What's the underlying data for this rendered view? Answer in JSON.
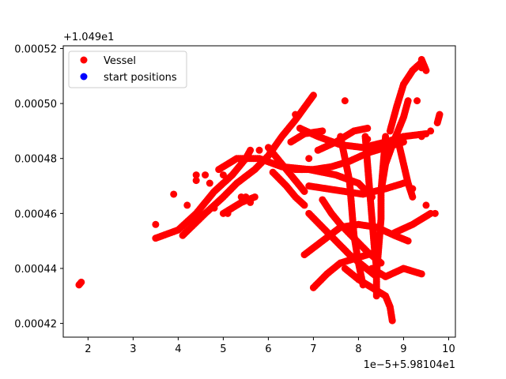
{
  "chart_data": {
    "type": "scatter",
    "title": "",
    "xlabel": "",
    "ylabel": "",
    "x_offset_label": "1e−5+5.98104e1",
    "y_offset_label": "+1.049e1",
    "xlim": [
      1.45,
      10.15
    ],
    "ylim": [
      0.000415,
      0.000521
    ],
    "x_ticks": [
      2,
      3,
      4,
      5,
      6,
      7,
      8,
      9,
      10
    ],
    "x_tick_labels": [
      "2",
      "3",
      "4",
      "5",
      "6",
      "7",
      "8",
      "9",
      "10"
    ],
    "y_ticks": [
      0.00042,
      0.00044,
      0.00046,
      0.00048,
      0.0005,
      0.00052
    ],
    "y_tick_labels": [
      "0.00042",
      "0.00044",
      "0.00046",
      "0.00048",
      "0.00050",
      "0.00052"
    ],
    "grid": false,
    "legend_position": "upper-left",
    "series": [
      {
        "name": "Vessel",
        "color": "#ff0000",
        "paths": [
          [
            [
              3.5,
              0.000451
            ],
            [
              4.0,
              0.000454
            ],
            [
              4.4,
              0.00046
            ],
            [
              4.8,
              0.000468
            ],
            [
              5.2,
              0.000474
            ],
            [
              5.5,
              0.00048
            ],
            [
              5.6,
              0.000483
            ]
          ],
          [
            [
              4.1,
              0.000452
            ],
            [
              4.6,
              0.00046
            ],
            [
              5.0,
              0.000466
            ],
            [
              5.3,
              0.000471
            ],
            [
              5.7,
              0.000476
            ],
            [
              6.0,
              0.000481
            ],
            [
              6.3,
              0.000488
            ],
            [
              6.6,
              0.000494
            ],
            [
              7.0,
              0.000503
            ]
          ],
          [
            [
              4.9,
              0.000476
            ],
            [
              5.3,
              0.00048
            ],
            [
              5.8,
              0.00048
            ],
            [
              6.3,
              0.000477
            ],
            [
              6.9,
              0.000476
            ],
            [
              7.5,
              0.000474
            ],
            [
              8.0,
              0.000471
            ],
            [
              8.3,
              0.000466
            ]
          ],
          [
            [
              5.0,
              0.00046
            ],
            [
              5.4,
              0.000464
            ],
            [
              5.7,
              0.000466
            ]
          ],
          [
            [
              6.7,
              0.000491
            ],
            [
              7.1,
              0.000488
            ],
            [
              7.6,
              0.000485
            ],
            [
              8.1,
              0.000484
            ],
            [
              8.6,
              0.000486
            ],
            [
              9.0,
              0.000488
            ],
            [
              9.5,
              0.000489
            ]
          ],
          [
            [
              6.6,
              0.000476
            ],
            [
              7.0,
              0.000476
            ],
            [
              7.4,
              0.000477
            ],
            [
              7.8,
              0.000479
            ],
            [
              8.2,
              0.000482
            ],
            [
              8.6,
              0.000484
            ],
            [
              9.0,
              0.000486
            ]
          ],
          [
            [
              7.1,
              0.000483
            ],
            [
              7.5,
              0.000486
            ],
            [
              7.9,
              0.00049
            ],
            [
              8.2,
              0.000491
            ]
          ],
          [
            [
              6.9,
              0.00047
            ],
            [
              7.3,
              0.000469
            ],
            [
              7.7,
              0.000468
            ],
            [
              8.1,
              0.000467
            ],
            [
              8.6,
              0.000469
            ],
            [
              9.0,
              0.000471
            ]
          ],
          [
            [
              7.6,
              0.000488
            ],
            [
              7.7,
              0.00048
            ],
            [
              7.8,
              0.000472
            ],
            [
              7.85,
              0.000462
            ],
            [
              7.9,
              0.000452
            ],
            [
              8.0,
              0.000442
            ],
            [
              8.1,
              0.000434
            ]
          ],
          [
            [
              8.15,
              0.000488
            ],
            [
              8.2,
              0.000478
            ],
            [
              8.25,
              0.000468
            ],
            [
              8.3,
              0.000458
            ],
            [
              8.35,
              0.000448
            ],
            [
              8.4,
              0.00044
            ]
          ],
          [
            [
              8.6,
              0.000488
            ],
            [
              8.55,
              0.000478
            ],
            [
              8.5,
              0.000468
            ],
            [
              8.5,
              0.000458
            ],
            [
              8.45,
              0.000448
            ],
            [
              8.4,
              0.000438
            ],
            [
              8.4,
              0.00043
            ]
          ],
          [
            [
              8.7,
              0.00049
            ],
            [
              8.85,
              0.000499
            ],
            [
              9.0,
              0.000507
            ],
            [
              9.2,
              0.000512
            ],
            [
              9.4,
              0.000515
            ]
          ],
          [
            [
              8.5,
              0.000468
            ],
            [
              8.6,
              0.000478
            ],
            [
              8.8,
              0.000487
            ],
            [
              9.0,
              0.000495
            ],
            [
              9.1,
              0.000501
            ]
          ],
          [
            [
              8.9,
              0.000485
            ],
            [
              9.0,
              0.000478
            ],
            [
              9.1,
              0.000471
            ],
            [
              9.2,
              0.000466
            ]
          ],
          [
            [
              6.9,
              0.00046
            ],
            [
              7.2,
              0.000455
            ],
            [
              7.5,
              0.00045
            ],
            [
              7.8,
              0.000445
            ],
            [
              8.1,
              0.000441
            ],
            [
              8.4,
              0.000437
            ]
          ],
          [
            [
              7.2,
              0.000465
            ],
            [
              7.4,
              0.00046
            ],
            [
              7.6,
              0.000456
            ],
            [
              7.9,
              0.000451
            ],
            [
              8.2,
              0.000446
            ],
            [
              8.5,
              0.000442
            ]
          ],
          [
            [
              6.8,
              0.000445
            ],
            [
              7.2,
              0.00045
            ],
            [
              7.6,
              0.000455
            ],
            [
              8.0,
              0.000456
            ],
            [
              8.4,
              0.000455
            ],
            [
              8.8,
              0.000452
            ],
            [
              9.1,
              0.00045
            ]
          ],
          [
            [
              7.0,
              0.000433
            ],
            [
              7.3,
              0.000438
            ],
            [
              7.6,
              0.000442
            ],
            [
              8.0,
              0.000444
            ],
            [
              8.4,
              0.000446
            ]
          ],
          [
            [
              7.7,
              0.00044
            ],
            [
              8.0,
              0.000436
            ],
            [
              8.3,
              0.000433
            ],
            [
              8.6,
              0.00043
            ],
            [
              8.7,
              0.000426
            ],
            [
              8.75,
              0.000421
            ]
          ],
          [
            [
              8.3,
              0.00044
            ],
            [
              8.6,
              0.000437
            ],
            [
              9.0,
              0.00044
            ],
            [
              9.4,
              0.000438
            ]
          ],
          [
            [
              6.0,
              0.000484
            ],
            [
              6.3,
              0.000478
            ],
            [
              6.6,
              0.000472
            ],
            [
              6.8,
              0.000468
            ]
          ],
          [
            [
              6.1,
              0.000475
            ],
            [
              6.4,
              0.00047
            ],
            [
              6.6,
              0.000466
            ],
            [
              6.8,
              0.000463
            ]
          ],
          [
            [
              6.5,
              0.000486
            ],
            [
              6.8,
              0.000489
            ],
            [
              7.2,
              0.00049
            ]
          ],
          [
            [
              8.8,
              0.000453
            ],
            [
              9.2,
              0.000456
            ],
            [
              9.6,
              0.00046
            ]
          ],
          [
            [
              9.4,
              0.000513
            ],
            [
              9.4,
              0.000516
            ],
            [
              9.5,
              0.000512
            ]
          ],
          [
            [
              9.75,
              0.000493
            ],
            [
              9.8,
              0.000496
            ]
          ],
          [
            [
              1.8,
              0.000434
            ],
            [
              1.85,
              0.000435
            ]
          ]
        ],
        "points": [
          [
            3.5,
            0.000456
          ],
          [
            3.9,
            0.000467
          ],
          [
            4.2,
            0.000463
          ],
          [
            4.4,
            0.000474
          ],
          [
            4.4,
            0.000472
          ],
          [
            4.6,
            0.000474
          ],
          [
            4.7,
            0.000471
          ],
          [
            5.0,
            0.000474
          ],
          [
            4.8,
            0.000462
          ],
          [
            5.1,
            0.00046
          ],
          [
            5.4,
            0.000466
          ],
          [
            5.6,
            0.000464
          ],
          [
            5.5,
            0.000466
          ],
          [
            7.7,
            0.000501
          ],
          [
            8.2,
            0.000487
          ],
          [
            9.3,
            0.000501
          ],
          [
            9.6,
            0.00049
          ],
          [
            9.4,
            0.000488
          ],
          [
            9.2,
            0.000469
          ],
          [
            9.5,
            0.000463
          ],
          [
            9.7,
            0.00046
          ],
          [
            5.8,
            0.000483
          ],
          [
            6.8,
            0.00049
          ],
          [
            6.6,
            0.000496
          ],
          [
            6.9,
            0.00048
          ]
        ]
      },
      {
        "name": "start positions",
        "color": "#0000ff",
        "paths": [],
        "points": []
      }
    ]
  }
}
